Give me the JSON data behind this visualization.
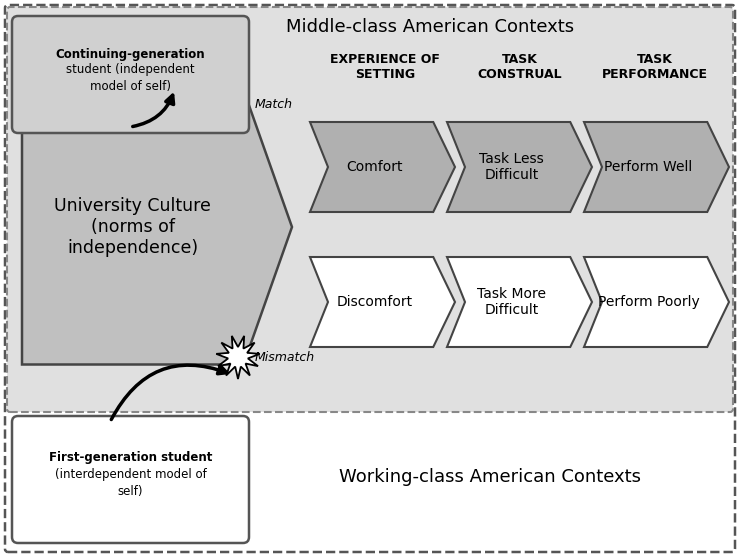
{
  "fig_width": 7.4,
  "fig_height": 5.57,
  "dpi": 100,
  "bg_color": "#ffffff",
  "title_top": "Middle-class American Contexts",
  "title_bottom": "Working-class American Contexts",
  "col_headers": [
    "EXPERIENCE OF\nSETTING",
    "TASK\nCONSTRUAL",
    "TASK\nPERFORMANCE"
  ],
  "top_arrows": [
    "Comfort",
    "Task Less\nDifficult",
    "Perform Well"
  ],
  "bottom_arrows": [
    "Discomfort",
    "Task More\nDifficult",
    "Perform Poorly"
  ],
  "student_top_bold": "Continuing-generation\nstudent",
  "student_top_normal": " (independent\nmodel of self)",
  "student_bottom_bold": "First-generation student",
  "student_bottom_normal": "\n(interdependent model of\nself)",
  "match_label": "Match",
  "mismatch_label": "Mismatch",
  "university_label": "University Culture\n(norms of\nindependence)",
  "gray_chevron": "#b0b0b0",
  "white_chevron": "#ffffff",
  "uni_fill": "#c0c0c0",
  "top_region_fill": "#e0e0e0",
  "cg_box_fill": "#d0d0d0",
  "fg_box_fill": "#ffffff"
}
